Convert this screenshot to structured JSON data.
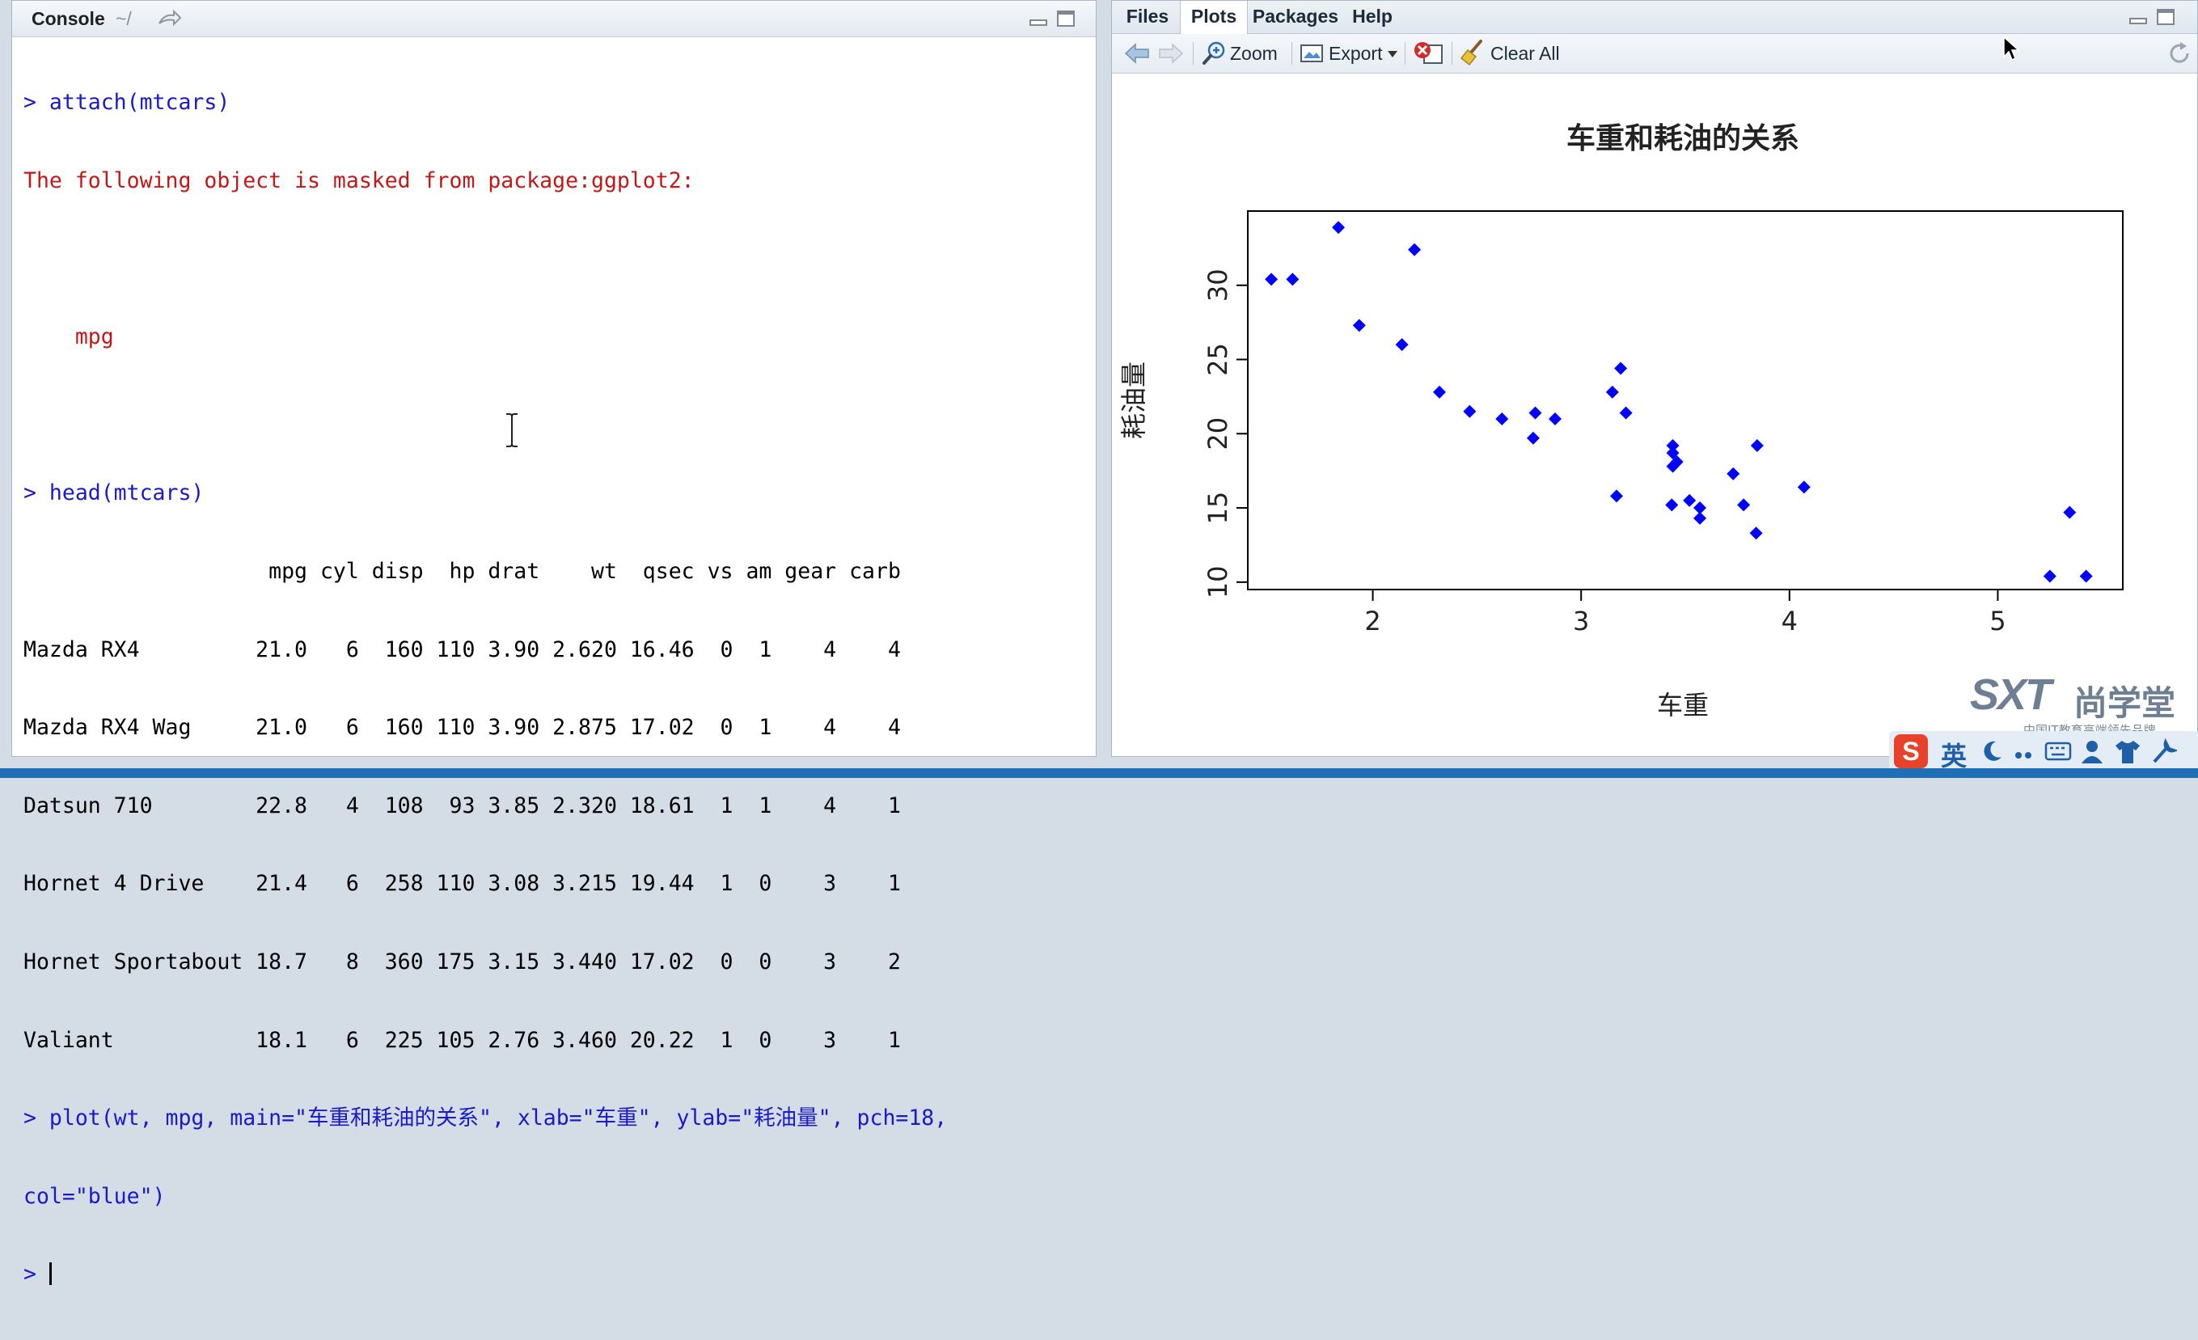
{
  "console": {
    "title": "Console",
    "path": "~/",
    "lines": [
      {
        "type": "cmd",
        "text": "> attach(mtcars)"
      },
      {
        "type": "err",
        "text": "The following object is masked from package:ggplot2:"
      },
      {
        "type": "err",
        "text": ""
      },
      {
        "type": "err",
        "text": "    mpg"
      },
      {
        "type": "err",
        "text": ""
      },
      {
        "type": "cmd",
        "text": "> head(mtcars)"
      },
      {
        "type": "out",
        "text": "                   mpg cyl disp  hp drat    wt  qsec vs am gear carb"
      },
      {
        "type": "out",
        "text": "Mazda RX4         21.0   6  160 110 3.90 2.620 16.46  0  1    4    4"
      },
      {
        "type": "out",
        "text": "Mazda RX4 Wag     21.0   6  160 110 3.90 2.875 17.02  0  1    4    4"
      },
      {
        "type": "out",
        "text": "Datsun 710        22.8   4  108  93 3.85 2.320 18.61  1  1    4    1"
      },
      {
        "type": "out",
        "text": "Hornet 4 Drive    21.4   6  258 110 3.08 3.215 19.44  1  0    3    1"
      },
      {
        "type": "out",
        "text": "Hornet Sportabout 18.7   8  360 175 3.15 3.440 17.02  0  0    3    2"
      },
      {
        "type": "out",
        "text": "Valiant           18.1   6  225 105 2.76 3.460 20.22  1  0    3    1"
      },
      {
        "type": "cmd",
        "text": "> plot(wt, mpg, main=\"车重和耗油的关系\", xlab=\"车重\", ylab=\"耗油量\", pch=18,"
      },
      {
        "type": "cmd",
        "text": "col=\"blue\")"
      }
    ],
    "prompt": "> "
  },
  "tabs": [
    {
      "label": "Files",
      "active": false
    },
    {
      "label": "Plots",
      "active": true
    },
    {
      "label": "Packages",
      "active": false
    },
    {
      "label": "Help",
      "active": false
    }
  ],
  "toolbar": {
    "zoom_label": "Zoom",
    "export_label": "Export",
    "clear_all_label": "Clear All"
  },
  "colors": {
    "command": "#1a1ac8",
    "message": "#c41818",
    "point": "#0000ff"
  },
  "chart_data": {
    "type": "scatter",
    "title": "车重和耗油的关系",
    "xlabel": "车重",
    "ylabel": "耗油量",
    "xlim": [
      1.4,
      5.6
    ],
    "ylim": [
      9.5,
      35
    ],
    "xticks": [
      2,
      3,
      4,
      5
    ],
    "yticks": [
      10,
      15,
      20,
      25,
      30
    ],
    "marker": "diamond",
    "color": "#0000ff",
    "points": [
      [
        2.62,
        21.0
      ],
      [
        2.875,
        21.0
      ],
      [
        2.32,
        22.8
      ],
      [
        3.215,
        21.4
      ],
      [
        3.44,
        18.7
      ],
      [
        3.46,
        18.1
      ],
      [
        3.57,
        14.3
      ],
      [
        3.19,
        24.4
      ],
      [
        3.15,
        22.8
      ],
      [
        3.44,
        19.2
      ],
      [
        3.44,
        17.8
      ],
      [
        4.07,
        16.4
      ],
      [
        3.73,
        17.3
      ],
      [
        3.78,
        15.2
      ],
      [
        5.25,
        10.4
      ],
      [
        5.424,
        10.4
      ],
      [
        5.345,
        14.7
      ],
      [
        2.2,
        32.4
      ],
      [
        1.615,
        30.4
      ],
      [
        1.835,
        33.9
      ],
      [
        2.465,
        21.5
      ],
      [
        3.52,
        15.5
      ],
      [
        3.435,
        15.2
      ],
      [
        3.84,
        13.3
      ],
      [
        3.845,
        19.2
      ],
      [
        1.935,
        27.3
      ],
      [
        2.14,
        26.0
      ],
      [
        1.513,
        30.4
      ],
      [
        3.17,
        15.8
      ],
      [
        2.77,
        19.7
      ],
      [
        3.57,
        15.0
      ],
      [
        2.78,
        21.4
      ]
    ]
  },
  "watermark": {
    "brand": "SXT",
    "brand_cn": "尚学堂",
    "tagline": "中国IT教育高端领先品牌"
  },
  "ime": {
    "logo": "S",
    "lang": "英"
  }
}
